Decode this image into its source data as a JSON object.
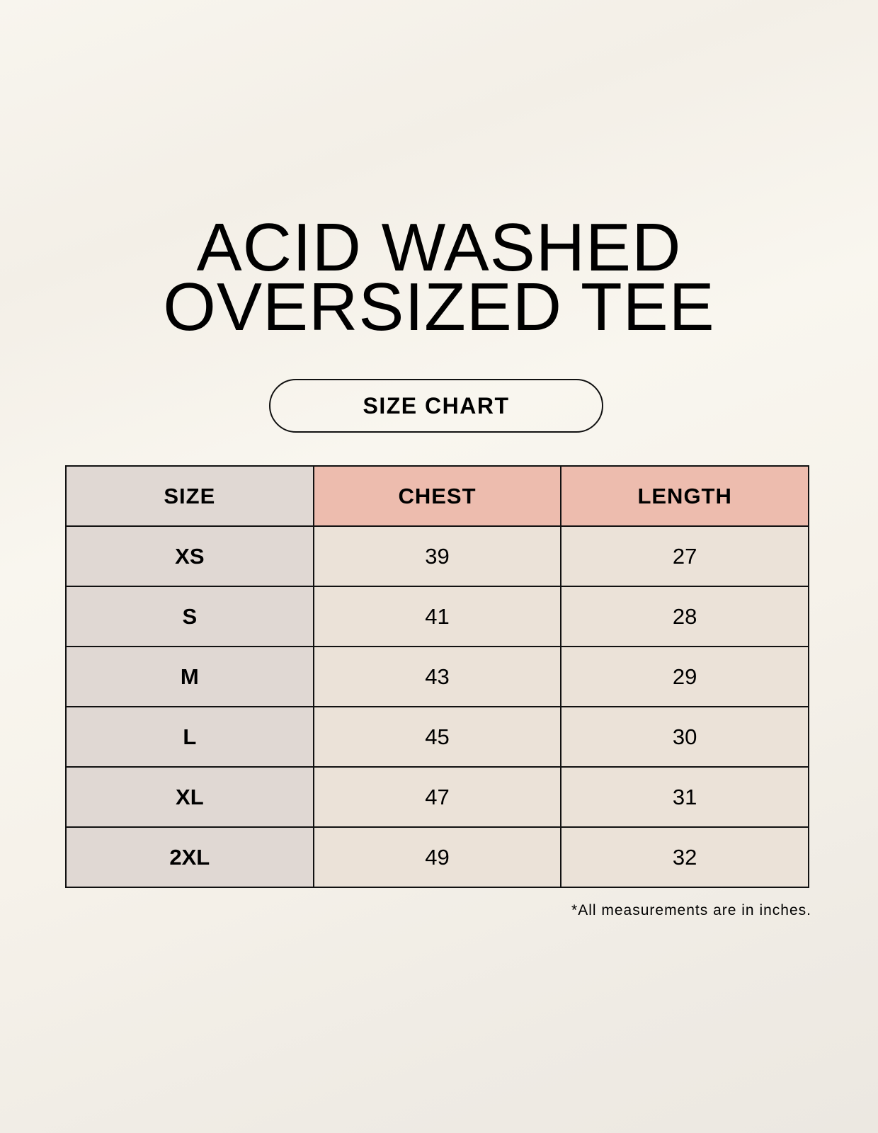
{
  "title_lines": [
    "ACID WASHED",
    "OVERSIZED TEE"
  ],
  "subtitle": "SIZE CHART",
  "colors": {
    "size_column": "#e0d8d3",
    "header_accent": "#edbcae",
    "cell": "#ebe2d8"
  },
  "table": {
    "headers": [
      "SIZE",
      "CHEST",
      "LENGTH"
    ],
    "rows": [
      [
        "XS",
        "39",
        "27"
      ],
      [
        "S",
        "41",
        "28"
      ],
      [
        "M",
        "43",
        "29"
      ],
      [
        "L",
        "45",
        "30"
      ],
      [
        "XL",
        "47",
        "31"
      ],
      [
        "2XL",
        "49",
        "32"
      ]
    ]
  },
  "note": "*All measurements are in inches."
}
